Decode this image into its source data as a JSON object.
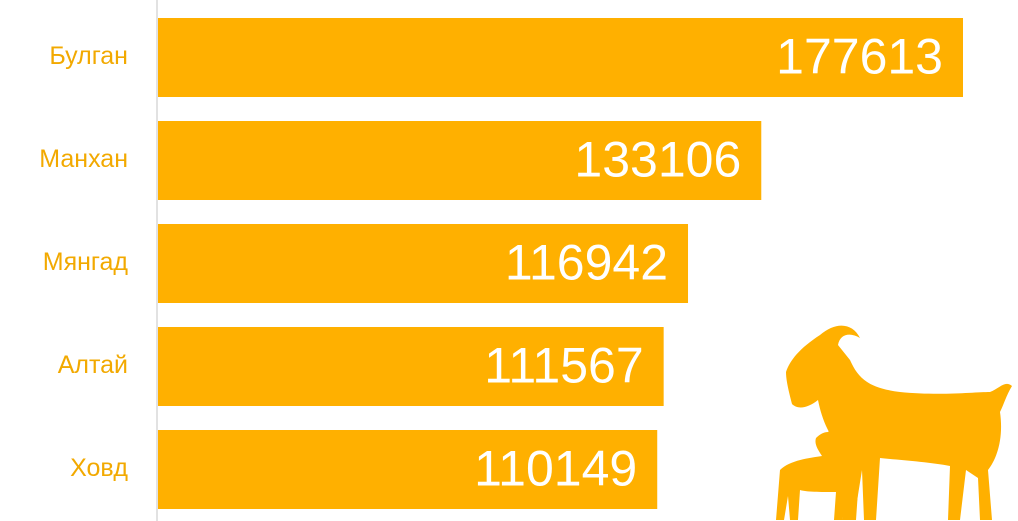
{
  "chart_data": {
    "type": "bar",
    "orientation": "horizontal",
    "categories": [
      "Булган",
      "Манхан",
      "Мянгад",
      "Алтай",
      "Ховд"
    ],
    "values": [
      177613,
      133106,
      116942,
      111567,
      110149
    ],
    "color": "#ffb000"
  }
}
